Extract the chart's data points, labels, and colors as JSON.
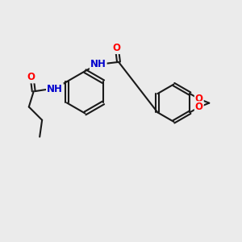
{
  "bg_color": "#ebebeb",
  "bond_color": "#1a1a1a",
  "bond_width": 1.5,
  "atom_colors": {
    "O": "#ff0000",
    "N": "#0000cd",
    "C": "#1a1a1a"
  },
  "font_size": 8.5,
  "figsize": [
    3.0,
    3.0
  ],
  "dpi": 100
}
